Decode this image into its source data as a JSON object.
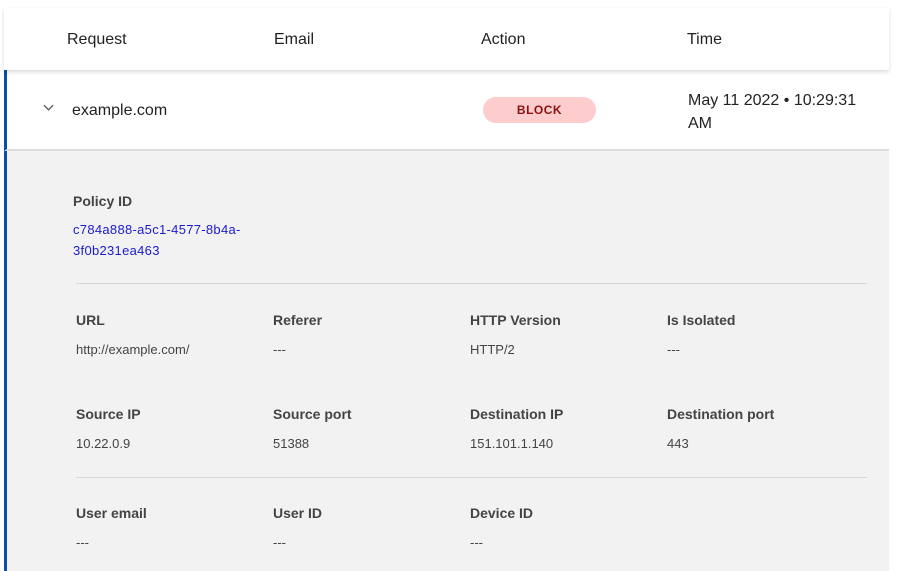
{
  "header": {
    "columns": [
      "Request",
      "Email",
      "Action",
      "Time"
    ]
  },
  "row": {
    "request": "example.com",
    "action": "BLOCK",
    "time": "May 11 2022 • 10:29:31 AM",
    "accent": "#0a4fa8"
  },
  "details": {
    "policy_label": "Policy ID",
    "policy_id": "c784a888-a5c1-4577-8b4a-3f0b231ea463",
    "fields": [
      {
        "label": "URL",
        "value": "http://example.com/"
      },
      {
        "label": "Referer",
        "value": "---"
      },
      {
        "label": "HTTP Version",
        "value": "HTTP/2"
      },
      {
        "label": "Is Isolated",
        "value": "---"
      },
      {
        "label": "Source IP",
        "value": "10.22.0.9"
      },
      {
        "label": "Source port",
        "value": "51388"
      },
      {
        "label": "Destination IP",
        "value": "151.101.1.140"
      },
      {
        "label": "Destination port",
        "value": "443"
      },
      {
        "label": "User email",
        "value": "---"
      },
      {
        "label": "User ID",
        "value": "---"
      },
      {
        "label": "Device ID",
        "value": "---"
      }
    ]
  }
}
